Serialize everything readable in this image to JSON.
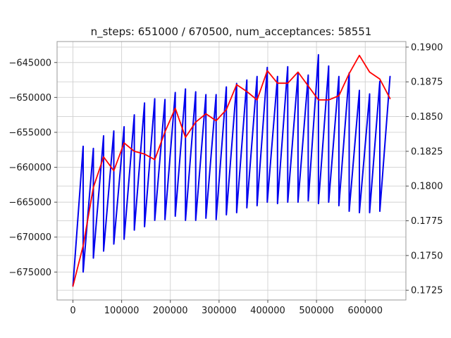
{
  "chart_data": {
    "type": "line",
    "title": "n_steps: 651000 / 670500, num_acceptances: 58551",
    "xlabel": "",
    "ylabel": "",
    "y2label": "",
    "grid": true,
    "xlim": [
      -32500,
      683500
    ],
    "ylim": [
      -679000,
      -642000
    ],
    "y2lim": [
      0.1718,
      0.1904
    ],
    "x_ticks": [
      0,
      100000,
      200000,
      300000,
      400000,
      500000,
      600000
    ],
    "x_tick_labels": [
      "0",
      "100000",
      "200000",
      "300000",
      "400000",
      "500000",
      "600000"
    ],
    "y_ticks": [
      -675000,
      -670000,
      -665000,
      -660000,
      -655000,
      -650000,
      -645000
    ],
    "y_tick_labels": [
      "−675000",
      "−670000",
      "−665000",
      "−660000",
      "−655000",
      "−650000",
      "−645000"
    ],
    "y2_ticks": [
      0.1725,
      0.175,
      0.1775,
      0.18,
      0.1825,
      0.185,
      0.1875,
      0.19
    ],
    "y2_tick_labels": [
      "0.1725",
      "0.1750",
      "0.1775",
      "0.1800",
      "0.1825",
      "0.1850",
      "0.1875",
      "0.1900"
    ],
    "series": [
      {
        "axis": "left",
        "color": "#0000ee",
        "points": [
          [
            0,
            -677000
          ],
          [
            21000,
            -657000
          ],
          [
            21000,
            -675000
          ],
          [
            42000,
            -657300
          ],
          [
            42000,
            -673000
          ],
          [
            63000,
            -655500
          ],
          [
            63000,
            -672000
          ],
          [
            84000,
            -654800
          ],
          [
            84000,
            -671000
          ],
          [
            105000,
            -654200
          ],
          [
            105000,
            -670300
          ],
          [
            126000,
            -652500
          ],
          [
            126000,
            -669000
          ],
          [
            147000,
            -650800
          ],
          [
            147000,
            -668500
          ],
          [
            168000,
            -650200
          ],
          [
            168000,
            -667600
          ],
          [
            189000,
            -650300
          ],
          [
            189000,
            -667500
          ],
          [
            210000,
            -649300
          ],
          [
            210000,
            -667000
          ],
          [
            231000,
            -648800
          ],
          [
            231000,
            -667600
          ],
          [
            252000,
            -649200
          ],
          [
            252000,
            -667600
          ],
          [
            273000,
            -649600
          ],
          [
            273000,
            -667300
          ],
          [
            294000,
            -649600
          ],
          [
            294000,
            -667500
          ],
          [
            315000,
            -648500
          ],
          [
            315000,
            -666800
          ],
          [
            336000,
            -648000
          ],
          [
            336000,
            -666500
          ],
          [
            357000,
            -647500
          ],
          [
            357000,
            -665800
          ],
          [
            378000,
            -647000
          ],
          [
            378000,
            -665500
          ],
          [
            399000,
            -645700
          ],
          [
            399000,
            -665000
          ],
          [
            420000,
            -647000
          ],
          [
            420000,
            -665200
          ],
          [
            441000,
            -645600
          ],
          [
            441000,
            -665000
          ],
          [
            462000,
            -646500
          ],
          [
            462000,
            -665000
          ],
          [
            483000,
            -646800
          ],
          [
            483000,
            -664800
          ],
          [
            504000,
            -643900
          ],
          [
            504000,
            -665200
          ],
          [
            525000,
            -645500
          ],
          [
            525000,
            -665000
          ],
          [
            546000,
            -647000
          ],
          [
            546000,
            -665500
          ],
          [
            567000,
            -646500
          ],
          [
            567000,
            -666300
          ],
          [
            588000,
            -649000
          ],
          [
            588000,
            -666500
          ],
          [
            609000,
            -649500
          ],
          [
            609000,
            -666500
          ],
          [
            630000,
            -647700
          ],
          [
            630000,
            -666300
          ],
          [
            651000,
            -647000
          ]
        ]
      },
      {
        "axis": "right",
        "color": "#ff0000",
        "points": [
          [
            0,
            0.1728
          ],
          [
            21000,
            0.1757
          ],
          [
            42000,
            0.1799
          ],
          [
            63000,
            0.1821
          ],
          [
            84000,
            0.1811
          ],
          [
            105000,
            0.1831
          ],
          [
            126000,
            0.1825
          ],
          [
            147000,
            0.1823
          ],
          [
            168000,
            0.1819
          ],
          [
            189000,
            0.1839
          ],
          [
            210000,
            0.1856
          ],
          [
            231000,
            0.1835
          ],
          [
            252000,
            0.1846
          ],
          [
            273000,
            0.1852
          ],
          [
            294000,
            0.1847
          ],
          [
            315000,
            0.1855
          ],
          [
            336000,
            0.1873
          ],
          [
            357000,
            0.1868
          ],
          [
            378000,
            0.1862
          ],
          [
            399000,
            0.1883
          ],
          [
            420000,
            0.1874
          ],
          [
            441000,
            0.1874
          ],
          [
            462000,
            0.1882
          ],
          [
            483000,
            0.1872
          ],
          [
            504000,
            0.1862
          ],
          [
            525000,
            0.1862
          ],
          [
            546000,
            0.1865
          ],
          [
            567000,
            0.1881
          ],
          [
            588000,
            0.1894
          ],
          [
            609000,
            0.1882
          ],
          [
            630000,
            0.1877
          ],
          [
            651000,
            0.1863
          ]
        ]
      }
    ]
  }
}
